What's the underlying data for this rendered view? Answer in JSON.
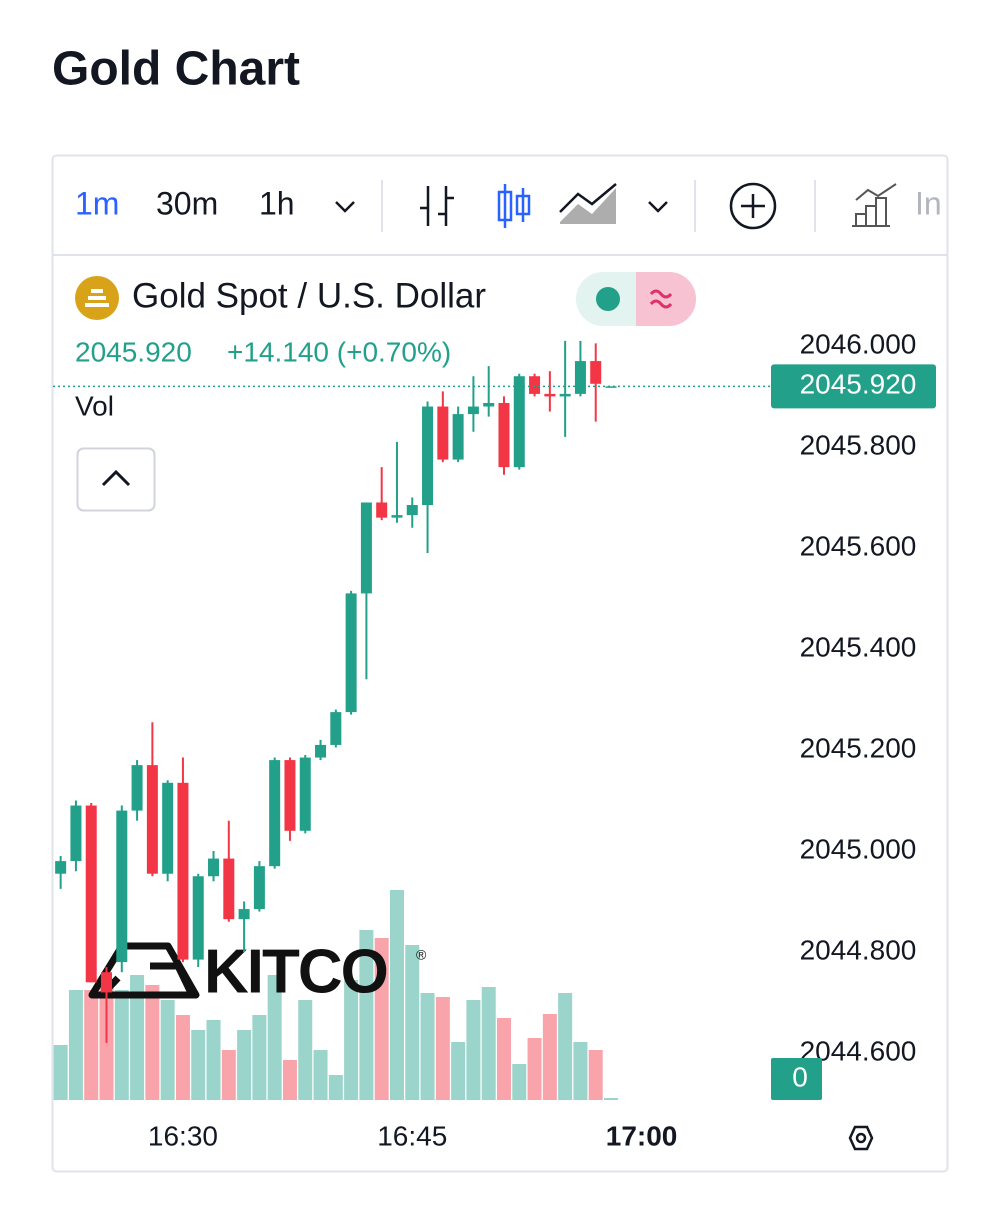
{
  "header": {
    "title": "Gold Chart"
  },
  "toolbar": {
    "intervals": [
      "1m",
      "30m",
      "1h"
    ],
    "indicators_label": "In"
  },
  "chart_data": {
    "type": "candlestick",
    "title": "Gold Spot / U.S. Dollar",
    "change": "+14.140 (+0.70%)",
    "volume_label": "Vol",
    "watermark": "KITCO",
    "watermark_mark": "®",
    "last_price": {
      "value": 2045.92,
      "label": "2045.920"
    },
    "up_color": "#22a08a",
    "down_color": "#f23645",
    "x": [
      "16:22",
      "16:23",
      "16:24",
      "16:25",
      "16:26",
      "16:27",
      "16:28",
      "16:29",
      "16:30",
      "16:31",
      "16:32",
      "16:33",
      "16:34",
      "16:35",
      "16:36",
      "16:37",
      "16:38",
      "16:39",
      "16:40",
      "16:41",
      "16:42",
      "16:43",
      "16:44",
      "16:45",
      "16:46",
      "16:47",
      "16:48",
      "16:49",
      "16:50",
      "16:51",
      "16:52",
      "16:53",
      "16:54",
      "16:55",
      "16:56",
      "16:57",
      "16:58"
    ],
    "open": [
      2044.955,
      2044.98,
      2045.09,
      2044.76,
      2044.78,
      2045.08,
      2045.17,
      2044.955,
      2045.135,
      2044.785,
      2044.95,
      2044.985,
      2044.865,
      2044.885,
      2044.97,
      2045.18,
      2045.04,
      2045.185,
      2045.21,
      2045.275,
      2045.51,
      2045.69,
      2045.66,
      2045.665,
      2045.685,
      2045.88,
      2045.775,
      2045.865,
      2045.88,
      2045.887,
      2045.76,
      2045.94,
      2045.905,
      2045.9,
      2045.905,
      2045.97,
      2045.92
    ],
    "high": [
      2044.99,
      2045.1,
      2045.095,
      2044.77,
      2045.09,
      2045.18,
      2045.255,
      2045.14,
      2045.185,
      2044.955,
      2045.0,
      2045.06,
      2044.9,
      2044.98,
      2045.185,
      2045.185,
      2045.19,
      2045.22,
      2045.28,
      2045.515,
      2045.69,
      2045.76,
      2045.81,
      2045.7,
      2045.89,
      2045.91,
      2045.88,
      2045.94,
      2045.96,
      2045.9,
      2045.945,
      2045.945,
      2045.95,
      2046.01,
      2046.01,
      2046.005,
      2045.92
    ],
    "low": [
      2044.925,
      2044.96,
      2044.74,
      2044.62,
      2044.76,
      2045.06,
      2044.95,
      2044.94,
      2044.78,
      2044.77,
      2044.94,
      2044.86,
      2044.8,
      2044.88,
      2044.965,
      2045.02,
      2045.035,
      2045.18,
      2045.205,
      2045.27,
      2045.34,
      2045.655,
      2045.65,
      2045.64,
      2045.59,
      2045.77,
      2045.77,
      2045.83,
      2045.86,
      2045.745,
      2045.755,
      2045.9,
      2045.87,
      2045.82,
      2045.9,
      2045.85,
      2045.92
    ],
    "close": [
      2044.98,
      2045.09,
      2044.74,
      2044.72,
      2045.08,
      2045.17,
      2044.955,
      2045.135,
      2044.785,
      2044.95,
      2044.985,
      2044.865,
      2044.885,
      2044.97,
      2045.18,
      2045.04,
      2045.185,
      2045.21,
      2045.275,
      2045.51,
      2045.69,
      2045.66,
      2045.665,
      2045.685,
      2045.88,
      2045.775,
      2045.865,
      2045.88,
      2045.887,
      2045.76,
      2045.94,
      2045.905,
      2045.9,
      2045.905,
      2045.97,
      2045.925,
      2045.92
    ],
    "volume": [
      55,
      110,
      110,
      120,
      110,
      125,
      115,
      100,
      85,
      70,
      80,
      50,
      70,
      85,
      125,
      40,
      100,
      50,
      25,
      120,
      170,
      162,
      210,
      155,
      107,
      103,
      58,
      100,
      113,
      82,
      36,
      62,
      86,
      107,
      58,
      50,
      2
    ],
    "volume_ylim": [
      0,
      845
    ],
    "volume_yticks": [
      0
    ],
    "xlim": [
      "16:21:30",
      "17:08:24"
    ],
    "xticks": [
      "16:30",
      "16:45",
      "17:00"
    ],
    "ylim": [
      2044.507,
      2046.18
    ],
    "yticks": [
      {
        "value": 2044.6,
        "label": "2044.600"
      },
      {
        "value": 2044.8,
        "label": "2044.800"
      },
      {
        "value": 2045.0,
        "label": "2045.000"
      },
      {
        "value": 2045.2,
        "label": "2045.200"
      },
      {
        "value": 2045.4,
        "label": "2045.400"
      },
      {
        "value": 2045.6,
        "label": "2045.600"
      },
      {
        "value": 2045.8,
        "label": "2045.800"
      },
      {
        "value": 2046.0,
        "label": "2046.000"
      }
    ],
    "grid": true
  }
}
